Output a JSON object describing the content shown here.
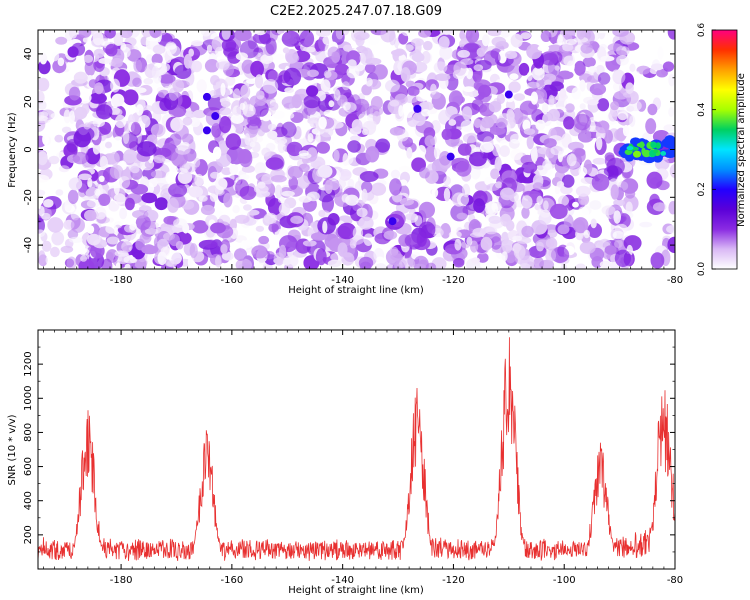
{
  "page_title": "C2E2.2025.247.07.18.G09",
  "chart_data": [
    {
      "type": "heatmap",
      "title": "C2E2.2025.247.07.18.G09",
      "xlabel": "Height of straight line (km)",
      "ylabel": "Frequency (Hz)",
      "xlim": [
        -195,
        -80
      ],
      "ylim": [
        -50,
        50
      ],
      "x_ticks": [
        -180,
        -160,
        -140,
        -120,
        -100,
        -80
      ],
      "y_ticks": [
        -40,
        -20,
        0,
        20,
        40
      ],
      "colorbar": {
        "label": "Normalized spectral amplitude",
        "range": [
          0,
          0.6
        ],
        "ticks": [
          "0.0",
          "0.2",
          "0.4",
          "0.6"
        ],
        "colors": [
          "#ffffff",
          "#d9b8f5",
          "#8a2be2",
          "#5a00d8",
          "#2200ff",
          "#0090ff",
          "#00e5ff",
          "#00d060",
          "#a8ff00",
          "#ffff00",
          "#ffa000",
          "#ff3000",
          "#ff0080"
        ]
      },
      "signal_band": {
        "x_range": [
          -90,
          -80
        ],
        "frequency_hz": 0,
        "amplitude": 0.35
      },
      "background_amplitude_range": [
        0,
        0.12
      ],
      "grid": false
    },
    {
      "type": "line",
      "xlabel": "Height of straight line (km)",
      "ylabel": "SNR (10 * v/v)",
      "xlim": [
        -195,
        -80
      ],
      "ylim": [
        0,
        1400
      ],
      "x_ticks": [
        -180,
        -160,
        -140,
        -120,
        -100,
        -80
      ],
      "y_ticks": [
        200,
        400,
        600,
        800,
        1000,
        1200
      ],
      "color": "#e83030",
      "baseline": 100,
      "peaks": [
        {
          "x": -186,
          "value": 960
        },
        {
          "x": -164.5,
          "value": 820
        },
        {
          "x": -126.5,
          "value": 1070
        },
        {
          "x": -110,
          "value": 1390
        },
        {
          "x": -93.5,
          "value": 750
        },
        {
          "x": -82,
          "value": 1030
        }
      ],
      "grid": false
    }
  ]
}
